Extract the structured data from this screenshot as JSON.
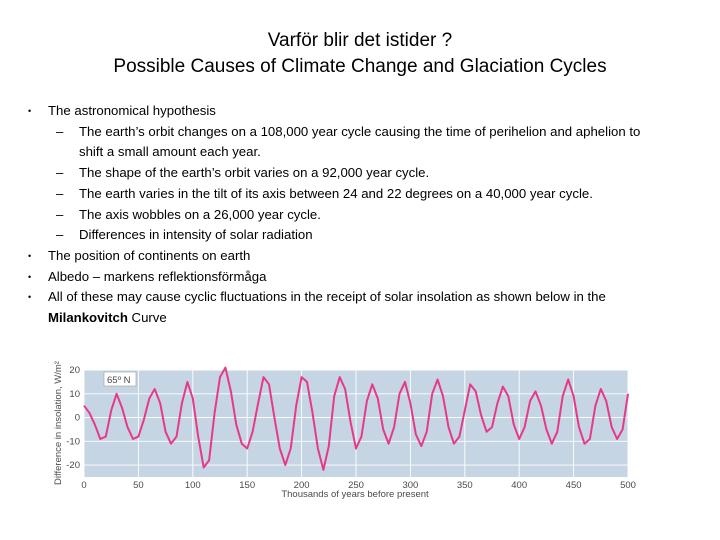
{
  "slide": {
    "title_line1": "Varför blir det istider ?",
    "title_line2": "Possible Causes of Climate Change and Glaciation Cycles"
  },
  "bullets": {
    "b1": "The astronomical hypothesis",
    "sub1": "The earth’s orbit changes on a 108,000 year cycle causing the time of perihelion and aphelion to shift a small amount each year.",
    "sub2": "The shape of the earth’s orbit varies on a 92,000 year cycle.",
    "sub3": "The earth varies in the tilt of its axis between 24 and 22 degrees on a 40,000 year cycle.",
    "sub4": "The axis wobbles on a 26,000 year cycle.",
    "sub5": "Differences in intensity of solar radiation",
    "b2": "The position of continents on earth",
    "b3": "Albedo – markens reflektionsförmåga",
    "b4_text": "All of these may cause cyclic fluctuations in the receipt of solar insolation as shown below in the ",
    "b4_bold": "Milankovitch",
    "b4_tail": " Curve"
  },
  "symbols": {
    "bullet": "•",
    "dash": "–"
  },
  "colors": {
    "plot_bg": "#c5d5e3",
    "line": "#e7398a",
    "grid": "#ffffff",
    "axis_text": "#4a4a4a"
  },
  "chart_data": {
    "type": "line",
    "title": "",
    "annotation": "65º N",
    "xlabel": "Thousands of years before present",
    "ylabel": "Difference in insolation, W/m²",
    "xlim": [
      0,
      500
    ],
    "ylim": [
      -25,
      20
    ],
    "x_ticks": [
      0,
      50,
      100,
      150,
      200,
      250,
      300,
      350,
      400,
      450,
      500
    ],
    "y_ticks": [
      20,
      10,
      0,
      -10,
      -20
    ],
    "series": [
      {
        "name": "65º N insolation",
        "x": [
          0,
          5,
          10,
          15,
          20,
          25,
          30,
          35,
          40,
          45,
          50,
          55,
          60,
          65,
          70,
          75,
          80,
          85,
          90,
          95,
          100,
          105,
          110,
          115,
          120,
          125,
          130,
          135,
          140,
          145,
          150,
          155,
          160,
          165,
          170,
          175,
          180,
          185,
          190,
          195,
          200,
          205,
          210,
          215,
          220,
          225,
          230,
          235,
          240,
          245,
          250,
          255,
          260,
          265,
          270,
          275,
          280,
          285,
          290,
          295,
          300,
          305,
          310,
          315,
          320,
          325,
          330,
          335,
          340,
          345,
          350,
          355,
          360,
          365,
          370,
          375,
          380,
          385,
          390,
          395,
          400,
          405,
          410,
          415,
          420,
          425,
          430,
          435,
          440,
          445,
          450,
          455,
          460,
          465,
          470,
          475,
          480,
          485,
          490,
          495,
          500
        ],
        "values": [
          5,
          2,
          -3,
          -9,
          -8,
          3,
          10,
          4,
          -4,
          -9,
          -8,
          -1,
          8,
          12,
          6,
          -6,
          -11,
          -8,
          6,
          15,
          8,
          -8,
          -21,
          -18,
          2,
          17,
          21,
          11,
          -3,
          -11,
          -13,
          -6,
          6,
          17,
          14,
          0,
          -13,
          -20,
          -13,
          5,
          17,
          15,
          2,
          -13,
          -22,
          -12,
          9,
          17,
          12,
          -2,
          -13,
          -8,
          7,
          14,
          8,
          -5,
          -11,
          -4,
          10,
          15,
          6,
          -7,
          -12,
          -6,
          10,
          16,
          9,
          -4,
          -11,
          -8,
          3,
          14,
          11,
          1,
          -6,
          -4,
          6,
          13,
          9,
          -3,
          -9,
          -4,
          7,
          11,
          5,
          -5,
          -11,
          -6,
          9,
          16,
          9,
          -4,
          -11,
          -9,
          5,
          12,
          7,
          -4,
          -9,
          -5,
          10
        ]
      }
    ]
  }
}
